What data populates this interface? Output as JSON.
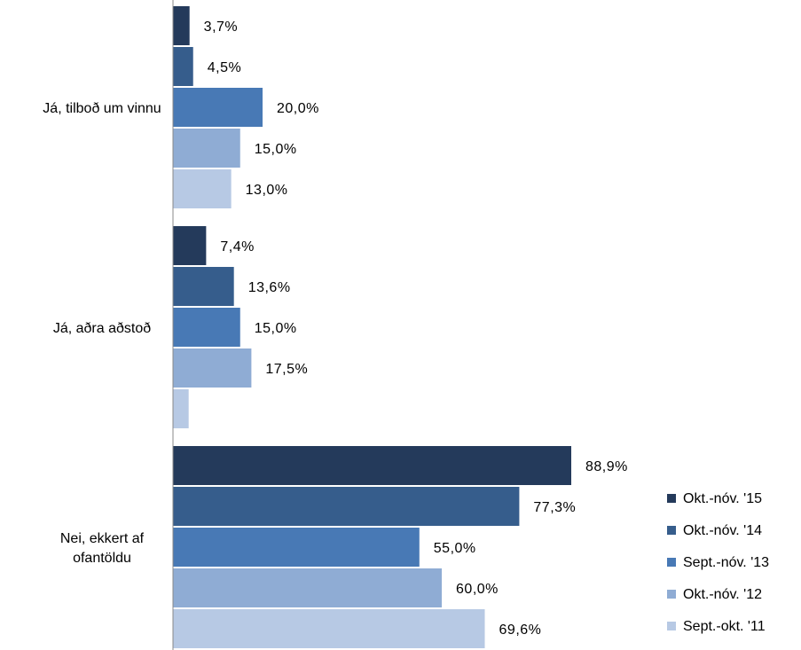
{
  "chart_data": {
    "type": "bar",
    "orientation": "horizontal",
    "categories": [
      "Já, tilboð um vinnu",
      "Já, aðra aðstoð",
      "Nei, ekkert af ofantöldu"
    ],
    "category_lines": [
      [
        "Já, tilboð um vinnu"
      ],
      [
        "Já, aðra aðstoð"
      ],
      [
        "Nei, ekkert af",
        "ofantöldu"
      ]
    ],
    "series": [
      {
        "name": "Okt.-nóv. '15",
        "color": "#243a5b",
        "values": [
          3.7,
          7.4,
          88.9
        ],
        "labels": [
          "3,7%",
          "7,4%",
          "88,9%"
        ]
      },
      {
        "name": "Okt.-nóv. '14",
        "color": "#365d8c",
        "values": [
          4.5,
          13.6,
          77.3
        ],
        "labels": [
          "4,5%",
          "13,6%",
          "77,3%"
        ]
      },
      {
        "name": "Sept.-nóv. '13",
        "color": "#4879b5",
        "values": [
          20.0,
          15.0,
          55.0
        ],
        "labels": [
          "20,0%",
          "15,0%",
          "55,0%"
        ]
      },
      {
        "name": "Okt.-nóv. '12",
        "color": "#8facd4",
        "values": [
          15.0,
          17.5,
          60.0
        ],
        "labels": [
          "15,0%",
          "17,5%",
          "60,0%"
        ]
      },
      {
        "name": "Sept.-okt. '11",
        "color": "#b7c9e4",
        "values": [
          13.0,
          3.5,
          69.6
        ],
        "labels": [
          "13,0%",
          "",
          "69,6%"
        ]
      }
    ],
    "xlim": [
      0,
      100
    ],
    "grid": false,
    "legend_position": "bottom-right"
  }
}
